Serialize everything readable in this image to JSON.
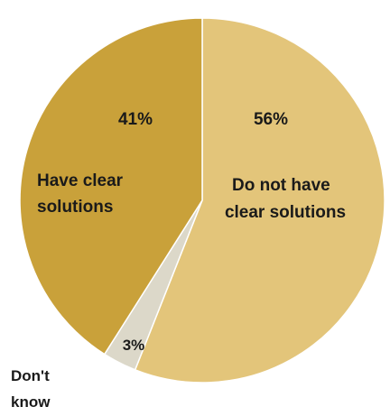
{
  "chart_data": {
    "type": "pie",
    "slices": [
      {
        "label": "Do not have clear solutions",
        "label_lines": [
          "Do not have",
          "clear solutions"
        ],
        "value": 56,
        "value_label": "56%",
        "color": "#e3c57a"
      },
      {
        "label": "Don't know",
        "label_lines": [
          "Don't",
          "know"
        ],
        "value": 3,
        "value_label": "3%",
        "color": "#dcd8c9"
      },
      {
        "label": "Have clear solutions",
        "label_lines": [
          "Have clear",
          "solutions"
        ],
        "value": 41,
        "value_label": "41%",
        "color": "#c9a13a"
      }
    ],
    "start": "12 o'clock",
    "direction": "clockwise",
    "separator_color": "#ffffff"
  }
}
